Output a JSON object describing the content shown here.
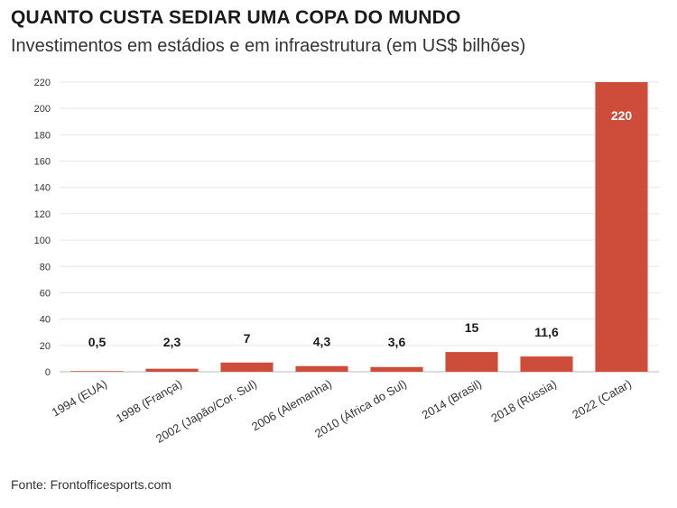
{
  "chart_data": {
    "type": "bar",
    "title": "QUANTO CUSTA SEDIAR UMA COPA DO MUNDO",
    "subtitle": "Investimentos em estádios e em infraestrutura (em US$ bilhões)",
    "categories": [
      "1994 (EUA)",
      "1998 (França)",
      "2002 (Japão/Cor. Sul)",
      "2006 (Alemanha)",
      "2010 (África do Sul)",
      "2014 (Brasil)",
      "2018 (Rússia)",
      "2022 (Catar)"
    ],
    "values": [
      0.5,
      2.3,
      7,
      4.3,
      3.6,
      15,
      11.6,
      220
    ],
    "value_labels": [
      "0,5",
      "2,3",
      "7",
      "4,3",
      "3,6",
      "15",
      "11,6",
      "220"
    ],
    "yticks": [
      0,
      20,
      40,
      60,
      80,
      100,
      120,
      140,
      160,
      180,
      200,
      220
    ],
    "ylim": [
      0,
      220
    ],
    "grid": true,
    "bar_color": "#cd4d3a",
    "inside_label_color": "#ffffff",
    "outside_label_color": "#1a1a1a"
  },
  "source": "Fonte: Frontofficesports.com"
}
